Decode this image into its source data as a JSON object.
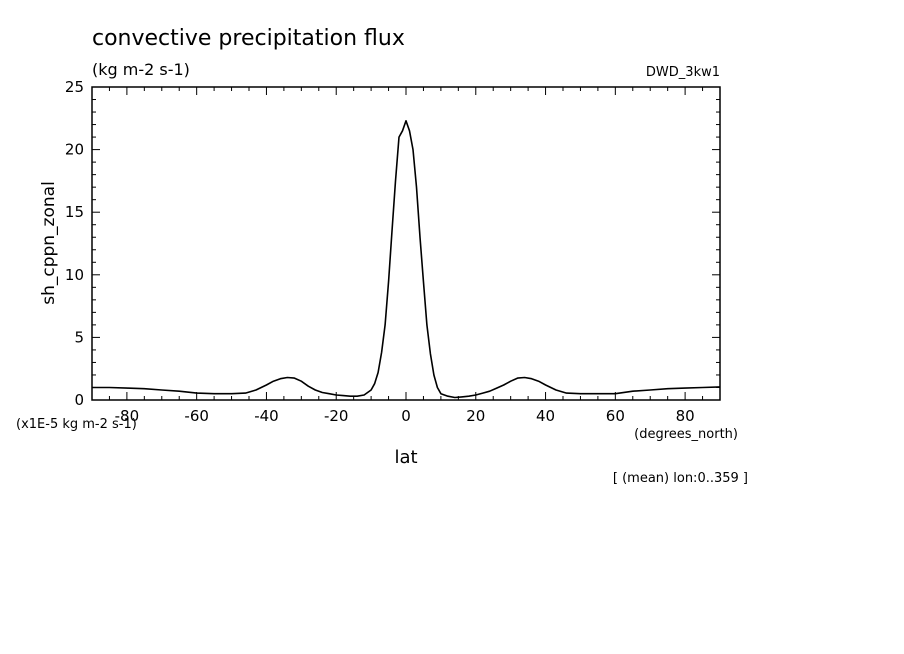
{
  "chart_data": {
    "type": "line",
    "title": "convective precipitation flux",
    "subtitle": "(kg m-2 s-1)",
    "dataset": "DWD_3kw1",
    "ylabel": "sh_cppn_zonal",
    "xlabel": "lat",
    "xunits": "(degrees_north)",
    "yscale_note": "(x1E-5 kg m-2 s-1)",
    "footnote": "[ (mean) lon:0..359 ]",
    "xlim": [
      -90,
      90
    ],
    "ylim": [
      0,
      25
    ],
    "xticks": [
      -80,
      -60,
      -40,
      -20,
      0,
      20,
      40,
      60,
      80
    ],
    "yticks": [
      0,
      5,
      10,
      15,
      20,
      25
    ],
    "grid": false,
    "series": [
      {
        "color": "#000000",
        "x": [
          -90,
          -85,
          -80,
          -75,
          -70,
          -65,
          -60,
          -55,
          -50,
          -46,
          -43,
          -40,
          -38,
          -36,
          -34,
          -32,
          -30,
          -28,
          -26,
          -24,
          -22,
          -20,
          -18,
          -16,
          -14,
          -12,
          -10,
          -9,
          -8,
          -7,
          -6,
          -5,
          -4,
          -3,
          -2,
          -1,
          0,
          1,
          2,
          3,
          4,
          5,
          6,
          7,
          8,
          9,
          10,
          12,
          14,
          16,
          18,
          20,
          22,
          24,
          26,
          28,
          30,
          32,
          34,
          36,
          38,
          40,
          43,
          46,
          50,
          55,
          60,
          65,
          70,
          75,
          80,
          85,
          90
        ],
        "y": [
          1.0,
          1.0,
          0.95,
          0.9,
          0.8,
          0.7,
          0.55,
          0.5,
          0.5,
          0.55,
          0.8,
          1.2,
          1.5,
          1.7,
          1.8,
          1.75,
          1.5,
          1.1,
          0.8,
          0.6,
          0.5,
          0.4,
          0.35,
          0.3,
          0.3,
          0.4,
          0.8,
          1.3,
          2.2,
          3.8,
          6.0,
          9.5,
          13.5,
          17.5,
          21.0,
          21.5,
          22.3,
          21.5,
          20.0,
          17.0,
          13.0,
          9.5,
          6.0,
          3.7,
          2.0,
          1.0,
          0.5,
          0.3,
          0.2,
          0.25,
          0.3,
          0.4,
          0.55,
          0.7,
          0.95,
          1.2,
          1.5,
          1.75,
          1.8,
          1.7,
          1.5,
          1.2,
          0.8,
          0.55,
          0.5,
          0.5,
          0.5,
          0.7,
          0.8,
          0.9,
          0.95,
          1.0,
          1.05
        ]
      }
    ]
  }
}
